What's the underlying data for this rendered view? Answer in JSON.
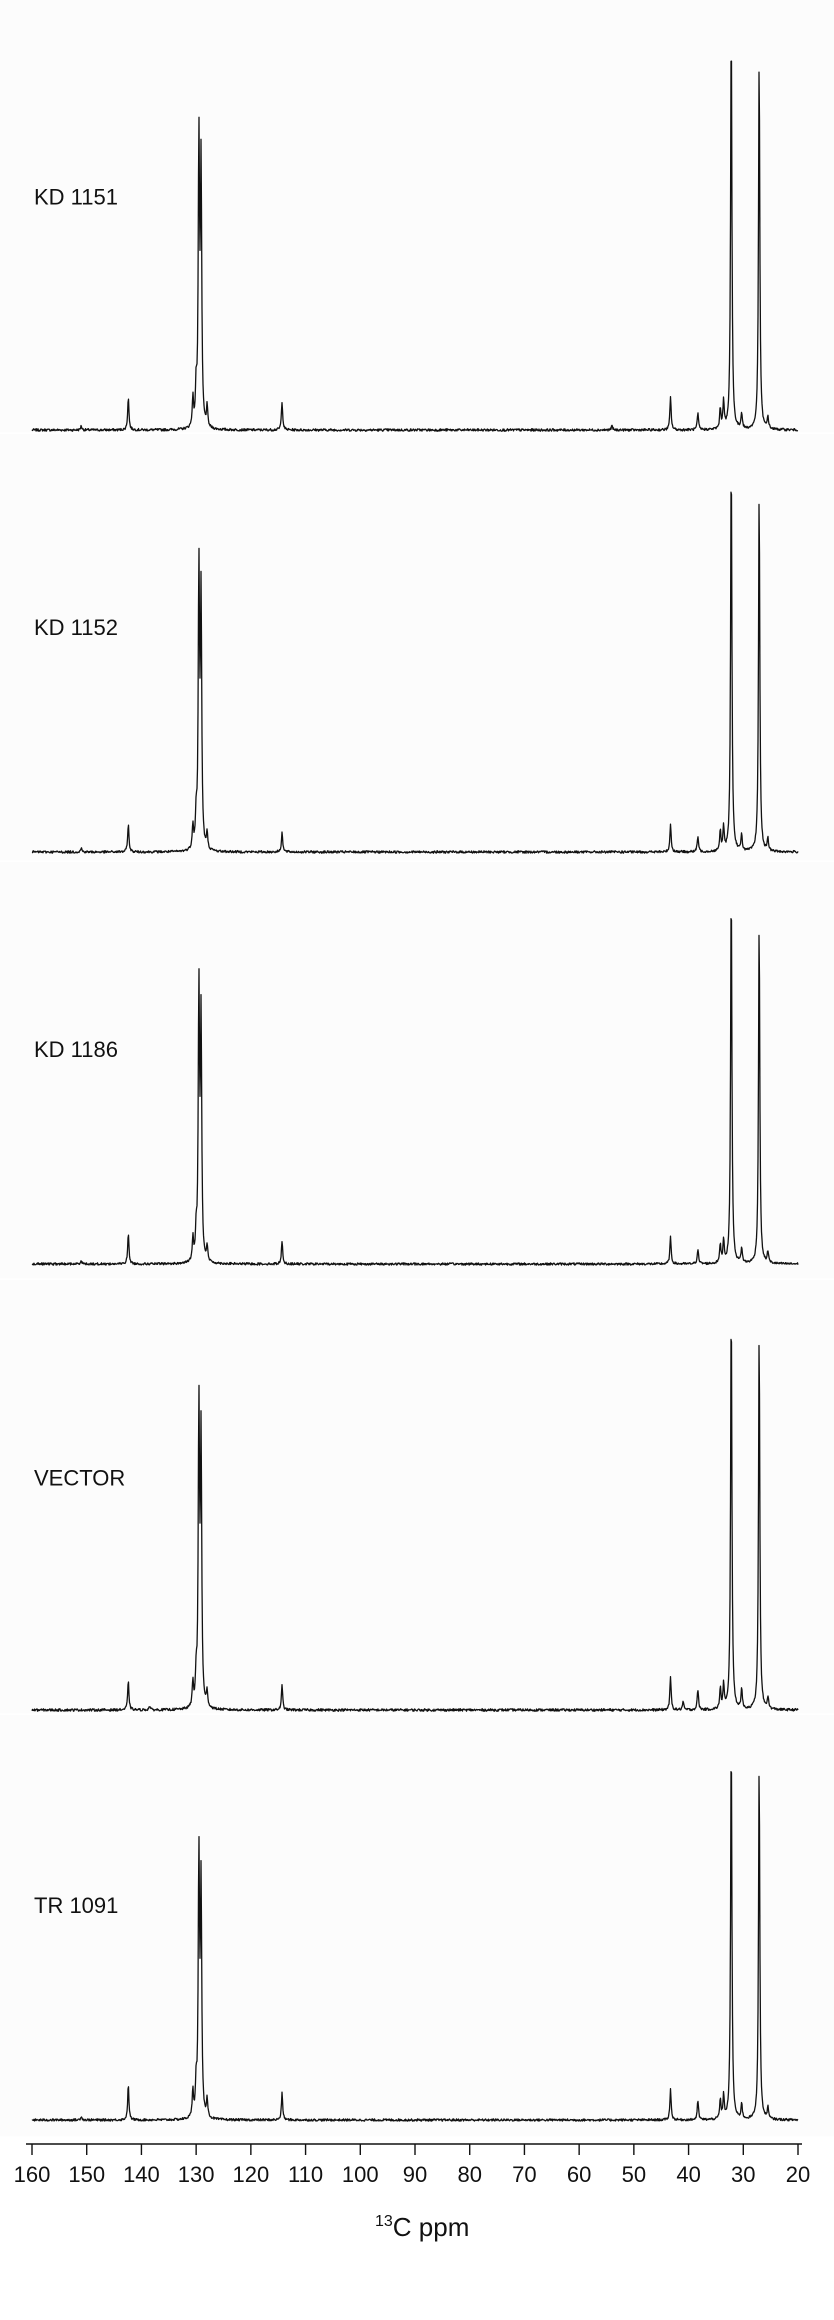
{
  "chart_data": {
    "type": "line",
    "xlabel_sup": "13",
    "xlabel_main": "C ppm",
    "xlim": [
      160,
      20
    ],
    "x_reversed": true,
    "ticks": [
      160,
      150,
      140,
      130,
      120,
      110,
      100,
      90,
      80,
      70,
      60,
      50,
      40,
      30,
      20
    ],
    "tick_labels": [
      "160",
      "150",
      "140",
      "130",
      "120",
      "110",
      "100",
      "90",
      "80",
      "70",
      "60",
      "50",
      "40",
      "30",
      "20"
    ],
    "ylim": [
      0,
      1
    ],
    "series": [
      {
        "name": "KD 1151",
        "peaks": [
          {
            "x": 151.0,
            "y": 0.01
          },
          {
            "x": 142.4,
            "y": 0.08
          },
          {
            "x": 130.6,
            "y": 0.07
          },
          {
            "x": 130.0,
            "y": 0.09
          },
          {
            "x": 129.5,
            "y": 0.7
          },
          {
            "x": 129.1,
            "y": 0.63
          },
          {
            "x": 128.0,
            "y": 0.05
          },
          {
            "x": 114.3,
            "y": 0.07
          },
          {
            "x": 54.0,
            "y": 0.01
          },
          {
            "x": 43.3,
            "y": 0.08
          },
          {
            "x": 38.3,
            "y": 0.04
          },
          {
            "x": 34.2,
            "y": 0.05
          },
          {
            "x": 33.6,
            "y": 0.07
          },
          {
            "x": 32.2,
            "y": 1.0
          },
          {
            "x": 30.3,
            "y": 0.04
          },
          {
            "x": 27.1,
            "y": 0.91
          },
          {
            "x": 25.5,
            "y": 0.03
          }
        ]
      },
      {
        "name": "KD 1152",
        "peaks": [
          {
            "x": 151.0,
            "y": 0.01
          },
          {
            "x": 142.4,
            "y": 0.07
          },
          {
            "x": 130.6,
            "y": 0.06
          },
          {
            "x": 130.0,
            "y": 0.08
          },
          {
            "x": 129.5,
            "y": 0.7
          },
          {
            "x": 129.1,
            "y": 0.63
          },
          {
            "x": 128.0,
            "y": 0.04
          },
          {
            "x": 114.3,
            "y": 0.05
          },
          {
            "x": 43.3,
            "y": 0.07
          },
          {
            "x": 38.3,
            "y": 0.04
          },
          {
            "x": 34.2,
            "y": 0.05
          },
          {
            "x": 33.6,
            "y": 0.06
          },
          {
            "x": 32.2,
            "y": 1.0
          },
          {
            "x": 30.3,
            "y": 0.04
          },
          {
            "x": 27.1,
            "y": 0.91
          },
          {
            "x": 25.5,
            "y": 0.03
          }
        ]
      },
      {
        "name": "KD 1186",
        "peaks": [
          {
            "x": 151.0,
            "y": 0.01
          },
          {
            "x": 142.4,
            "y": 0.08
          },
          {
            "x": 130.6,
            "y": 0.06
          },
          {
            "x": 130.0,
            "y": 0.07
          },
          {
            "x": 129.5,
            "y": 0.71
          },
          {
            "x": 129.1,
            "y": 0.63
          },
          {
            "x": 128.0,
            "y": 0.04
          },
          {
            "x": 114.3,
            "y": 0.06
          },
          {
            "x": 43.3,
            "y": 0.07
          },
          {
            "x": 38.3,
            "y": 0.04
          },
          {
            "x": 34.2,
            "y": 0.05
          },
          {
            "x": 33.6,
            "y": 0.06
          },
          {
            "x": 32.2,
            "y": 1.0
          },
          {
            "x": 30.3,
            "y": 0.04
          },
          {
            "x": 27.1,
            "y": 0.9
          },
          {
            "x": 25.5,
            "y": 0.03
          }
        ]
      },
      {
        "name": "VECTOR",
        "peaks": [
          {
            "x": 142.4,
            "y": 0.07
          },
          {
            "x": 138.5,
            "y": 0.01
          },
          {
            "x": 130.6,
            "y": 0.06
          },
          {
            "x": 130.0,
            "y": 0.07
          },
          {
            "x": 129.5,
            "y": 0.73
          },
          {
            "x": 129.1,
            "y": 0.65
          },
          {
            "x": 128.0,
            "y": 0.04
          },
          {
            "x": 114.3,
            "y": 0.06
          },
          {
            "x": 43.3,
            "y": 0.08
          },
          {
            "x": 41.0,
            "y": 0.02
          },
          {
            "x": 38.3,
            "y": 0.05
          },
          {
            "x": 34.2,
            "y": 0.05
          },
          {
            "x": 33.6,
            "y": 0.06
          },
          {
            "x": 32.2,
            "y": 1.0
          },
          {
            "x": 30.3,
            "y": 0.05
          },
          {
            "x": 27.1,
            "y": 0.93
          },
          {
            "x": 25.5,
            "y": 0.03
          }
        ]
      },
      {
        "name": "TR 1091",
        "peaks": [
          {
            "x": 151.0,
            "y": 0.01
          },
          {
            "x": 142.4,
            "y": 0.09
          },
          {
            "x": 130.6,
            "y": 0.07
          },
          {
            "x": 130.0,
            "y": 0.08
          },
          {
            "x": 129.5,
            "y": 0.68
          },
          {
            "x": 129.1,
            "y": 0.6
          },
          {
            "x": 128.0,
            "y": 0.05
          },
          {
            "x": 114.3,
            "y": 0.07
          },
          {
            "x": 43.3,
            "y": 0.08
          },
          {
            "x": 38.3,
            "y": 0.05
          },
          {
            "x": 34.2,
            "y": 0.05
          },
          {
            "x": 33.6,
            "y": 0.06
          },
          {
            "x": 32.2,
            "y": 1.0
          },
          {
            "x": 30.3,
            "y": 0.04
          },
          {
            "x": 27.1,
            "y": 0.93
          },
          {
            "x": 25.5,
            "y": 0.03
          }
        ]
      }
    ]
  }
}
